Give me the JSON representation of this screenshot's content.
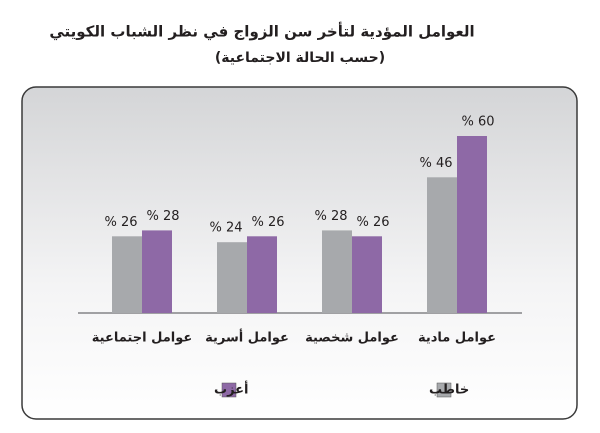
{
  "chart_data": {
    "type": "bar",
    "title": "العوامل المؤدية لتأخر سن الزواج في نظر الشباب الكويتي",
    "subtitle": "(حسب الحالة الاجتماعية)",
    "categories": [
      "عوامل مادية",
      "عوامل شخصية",
      "عوامل أسرية",
      "عوامل اجتماعية"
    ],
    "series": [
      {
        "name": "خاطب",
        "color": "#a7a9ac",
        "values": [
          46,
          28,
          24,
          26
        ],
        "value_labels": [
          "% 46",
          "% 28",
          "% 24",
          "% 26"
        ]
      },
      {
        "name": "أعزب",
        "color": "#8e69a6",
        "values": [
          60,
          26,
          26,
          28
        ],
        "value_labels": [
          "% 60",
          "% 26",
          "% 26",
          "% 28"
        ]
      }
    ],
    "legend": "bottom"
  }
}
